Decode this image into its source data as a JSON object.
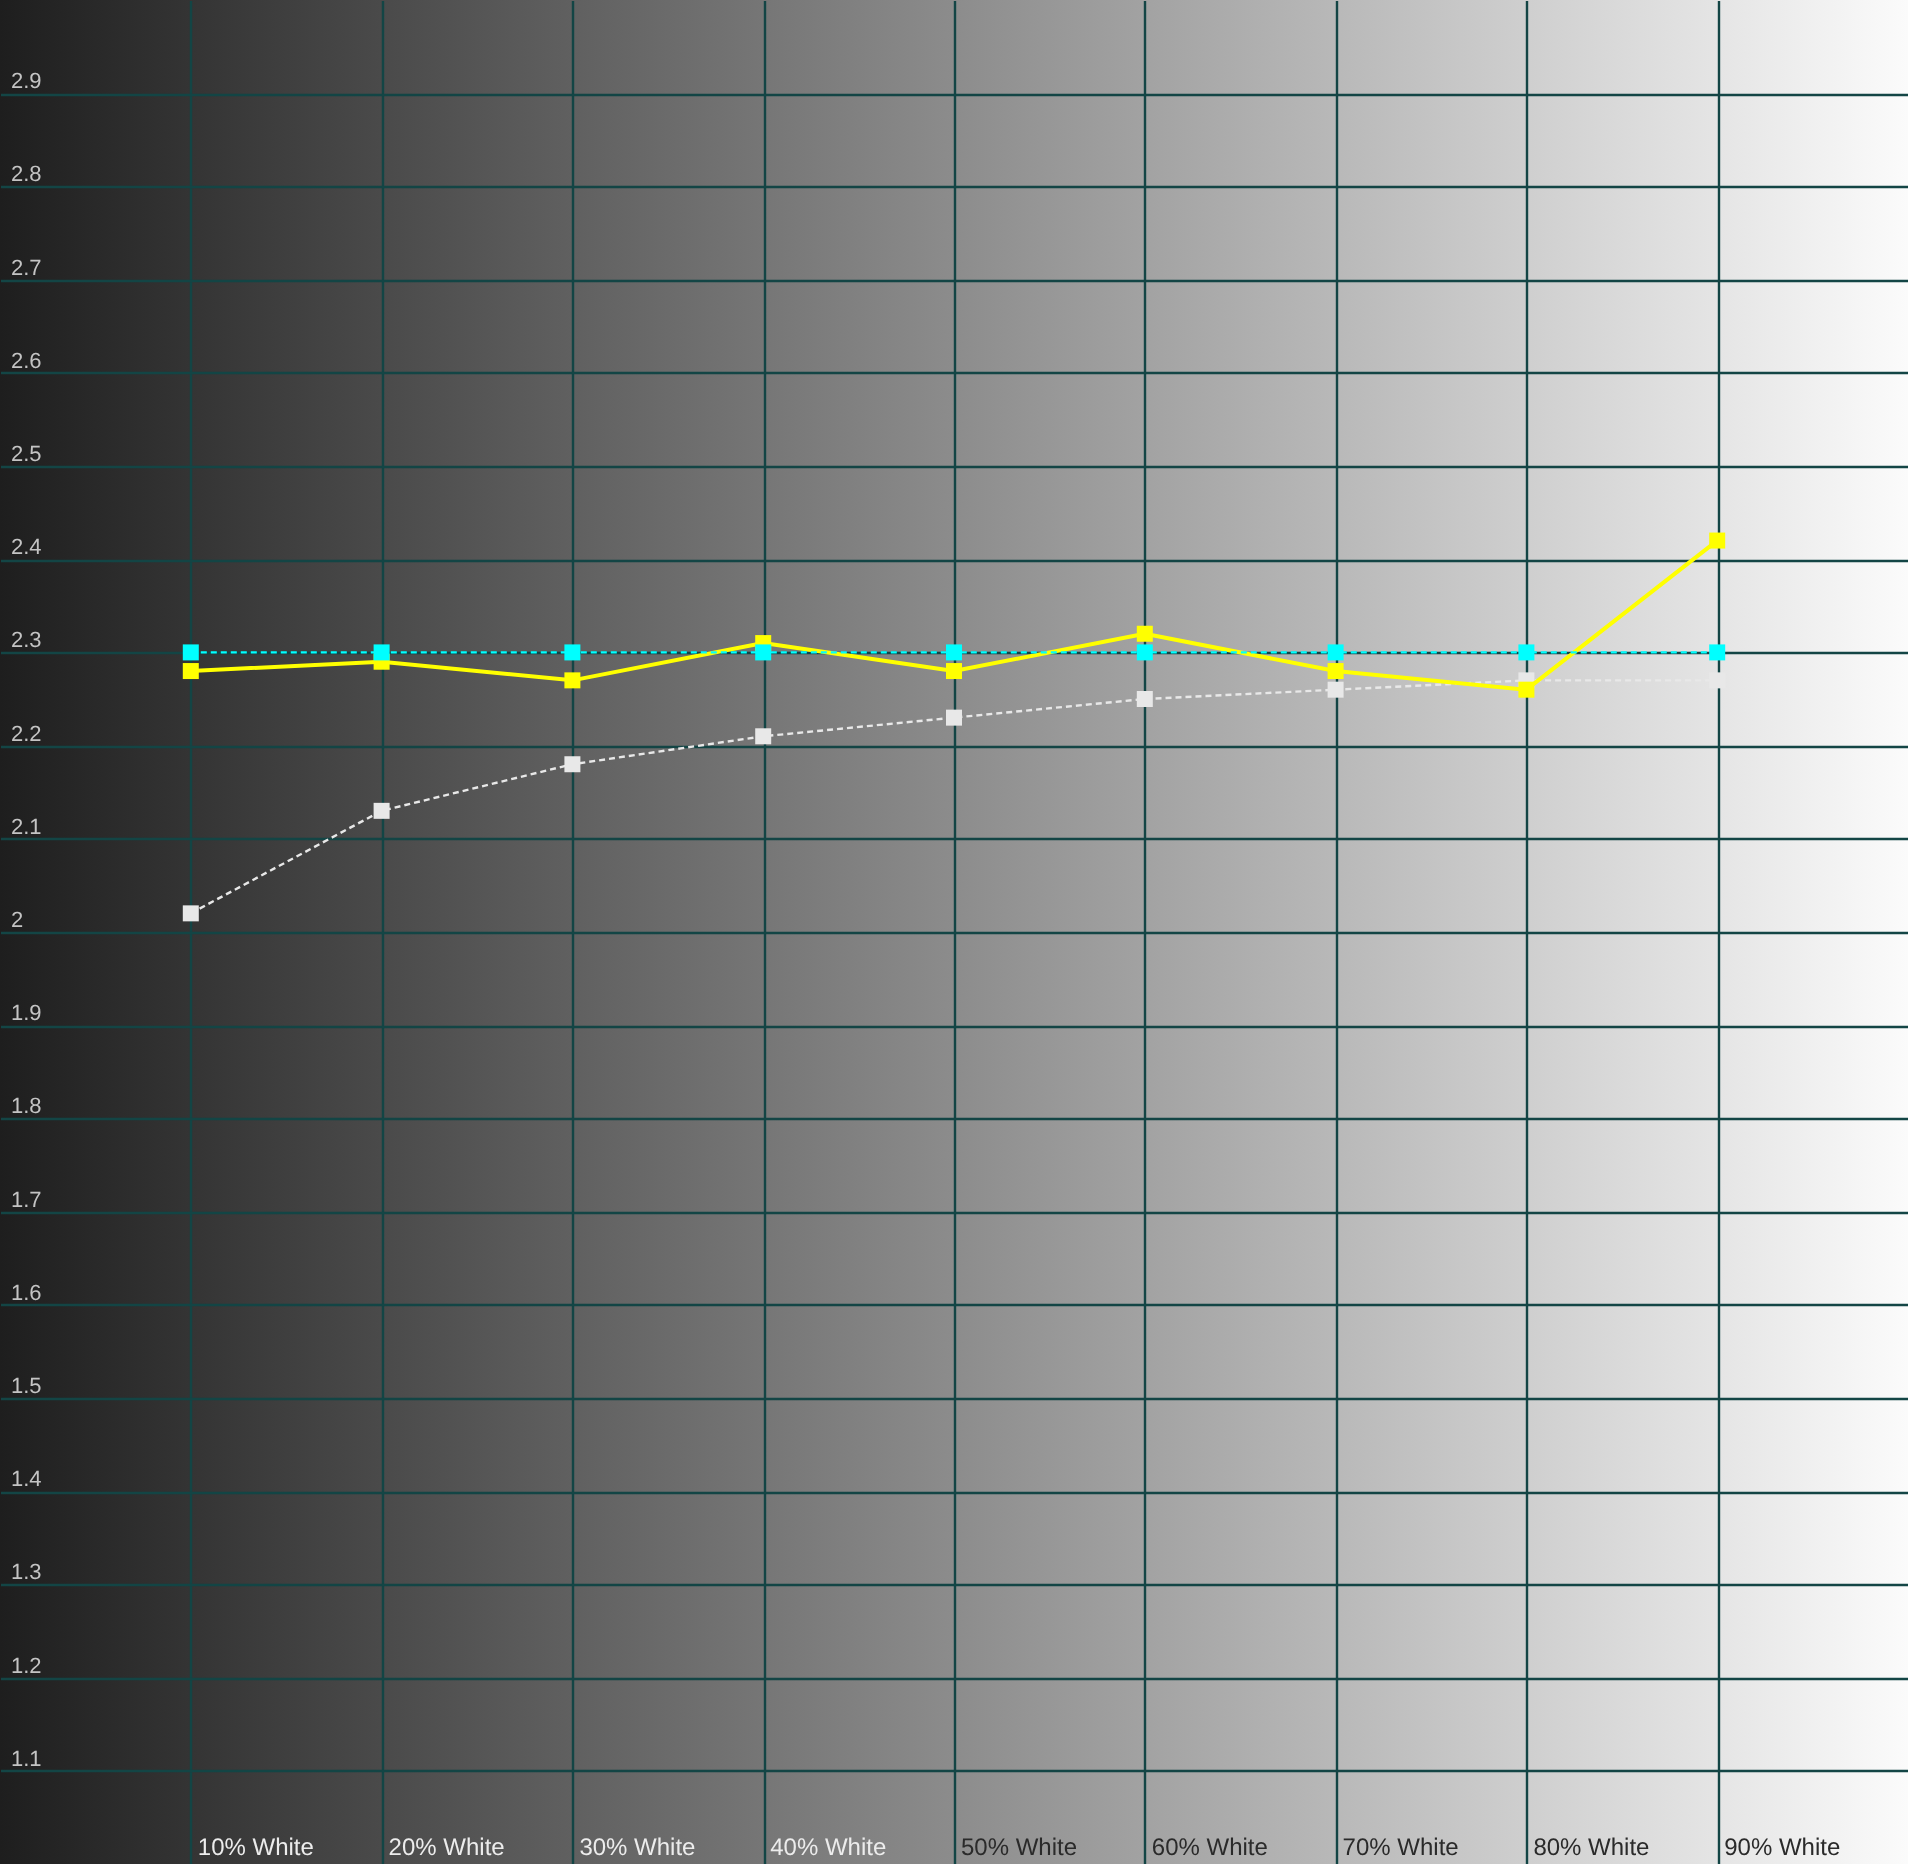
{
  "chart_data": {
    "type": "line",
    "categories": [
      "10% White",
      "20% White",
      "30% White",
      "40% White",
      "50% White",
      "60% White",
      "70% White",
      "80% White",
      "90% White"
    ],
    "ylim": [
      1.0,
      3.0
    ],
    "yticks": [
      1.1,
      1.2,
      1.3,
      1.4,
      1.5,
      1.6,
      1.7,
      1.8,
      1.9,
      2,
      2.1,
      2.2,
      2.3,
      2.4,
      2.5,
      2.6,
      2.7,
      2.8,
      2.9
    ],
    "grid": true,
    "marker": "square",
    "series": [
      {
        "color": "#e8e8e8",
        "line_style": "dashed",
        "values": [
          2.02,
          2.13,
          2.18,
          2.21,
          2.23,
          2.25,
          2.26,
          2.27,
          2.27
        ]
      },
      {
        "color": "#ffff00",
        "line_style": "solid",
        "values": [
          2.28,
          2.29,
          2.27,
          2.31,
          2.28,
          2.32,
          2.28,
          2.26,
          2.42
        ]
      },
      {
        "color": "#00ffff",
        "line_style": "dashed",
        "values": [
          2.3,
          2.3,
          2.3,
          2.3,
          2.3,
          2.3,
          2.3,
          2.3,
          2.3
        ]
      }
    ]
  }
}
